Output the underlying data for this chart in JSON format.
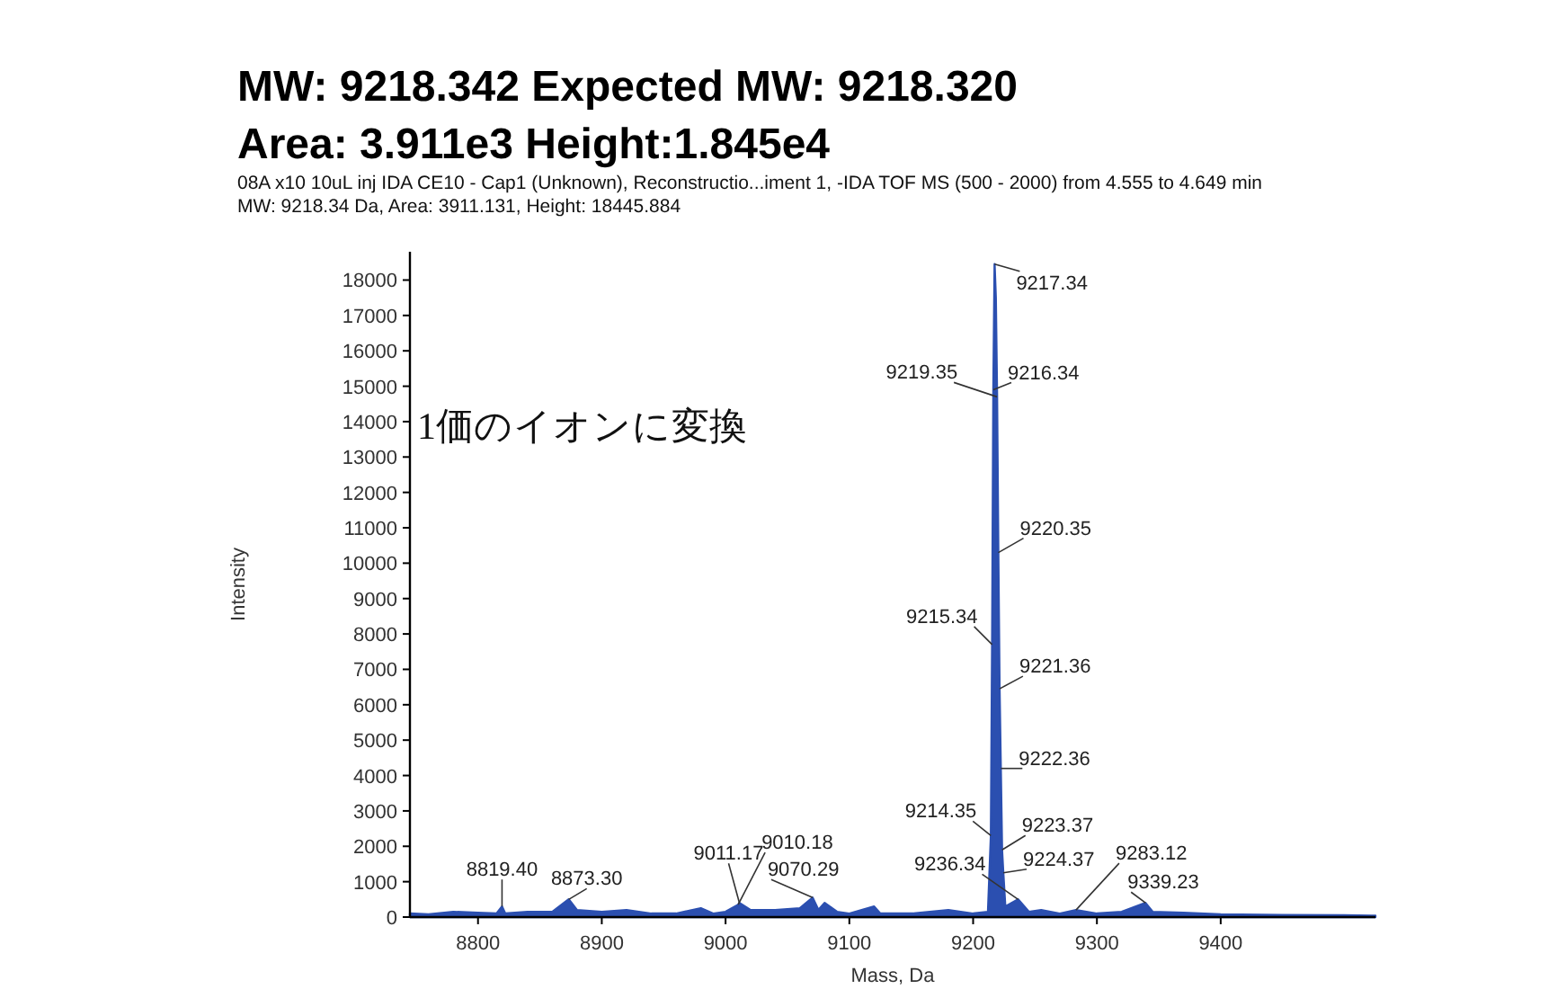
{
  "chart_data": {
    "type": "area",
    "title": "MW: 9218.342  Expected MW: 9218.320",
    "subtitle": "Area: 3.911e3  Height:1.845e4",
    "xlabel": "Mass, Da",
    "ylabel": "Intensity",
    "annotations": [
      "08A x10 10uL inj IDA CE10 - Cap1 (Unknown), Reconstructio...iment 1, -IDA TOF MS (500 - 2000) from 4.555 to 4.649 min",
      "MW: 9218.34 Da, Area: 3911.131, Height: 18445.884",
      "1価のイオンに変換",
      {
        "text": "9217.34",
        "x": 9217.34,
        "y": 18450
      },
      {
        "text": "9216.34",
        "x": 9216.34,
        "y": 14900
      },
      {
        "text": "9219.35",
        "x": 9219.35,
        "y": 14700
      },
      {
        "text": "9220.35",
        "x": 9220.35,
        "y": 10300
      },
      {
        "text": "9215.34",
        "x": 9215.34,
        "y": 7700
      },
      {
        "text": "9221.36",
        "x": 9221.36,
        "y": 6450
      },
      {
        "text": "9222.36",
        "x": 9222.36,
        "y": 4200
      },
      {
        "text": "9214.35",
        "x": 9214.35,
        "y": 2300
      },
      {
        "text": "9223.37",
        "x": 9223.37,
        "y": 1900
      },
      {
        "text": "9224.37",
        "x": 9224.37,
        "y": 1250
      },
      {
        "text": "9236.34",
        "x": 9236.34,
        "y": 500
      },
      {
        "text": "9283.12",
        "x": 9283.12,
        "y": 200
      },
      {
        "text": "9339.23",
        "x": 9339.23,
        "y": 400
      },
      {
        "text": "8819.40",
        "x": 8819.4,
        "y": 300
      },
      {
        "text": "8873.30",
        "x": 8873.3,
        "y": 500
      },
      {
        "text": "9011.17",
        "x": 9011.17,
        "y": 400
      },
      {
        "text": "9010.18",
        "x": 9010.18,
        "y": 350
      },
      {
        "text": "9070.29",
        "x": 9070.29,
        "y": 550
      }
    ],
    "x": [
      8745,
      8760,
      8780,
      8800,
      8815,
      8819.4,
      8822,
      8840,
      8860,
      8873.3,
      8880,
      8900,
      8920,
      8940,
      8960,
      8980,
      8990,
      9000,
      9010.18,
      9011.17,
      9020,
      9040,
      9060,
      9070.29,
      9075,
      9080,
      9090,
      9100,
      9120,
      9125,
      9150,
      9180,
      9200,
      9212,
      9214.35,
      9215.34,
      9216.34,
      9217.34,
      9218.34,
      9219.35,
      9220.35,
      9221.36,
      9222.36,
      9223.37,
      9224.37,
      9226,
      9236.34,
      9245,
      9255,
      9270,
      9283.12,
      9300,
      9320,
      9339.23,
      9345,
      9370,
      9400,
      9450,
      9500,
      9525
    ],
    "series": [
      {
        "color": "#2b4fb0",
        "values": [
          100,
          80,
          150,
          120,
          100,
          300,
          100,
          150,
          150,
          500,
          200,
          150,
          200,
          100,
          100,
          250,
          100,
          150,
          350,
          400,
          200,
          200,
          250,
          550,
          200,
          400,
          150,
          100,
          300,
          100,
          100,
          200,
          100,
          150,
          2300,
          7700,
          14900,
          18450,
          17500,
          14700,
          10300,
          6450,
          4200,
          1900,
          1250,
          300,
          500,
          150,
          200,
          100,
          200,
          100,
          150,
          400,
          150,
          120,
          80,
          60,
          50,
          40
        ]
      }
    ],
    "xlim": [
      8745,
      9525
    ],
    "ylim": [
      0,
      18800
    ],
    "xticks": [
      8800,
      8900,
      9000,
      9100,
      9200,
      9300,
      9400
    ],
    "yticks": [
      0,
      1000,
      2000,
      3000,
      4000,
      5000,
      6000,
      7000,
      8000,
      9000,
      10000,
      11000,
      12000,
      13000,
      14000,
      15000,
      16000,
      17000,
      18000
    ],
    "grid": false
  }
}
